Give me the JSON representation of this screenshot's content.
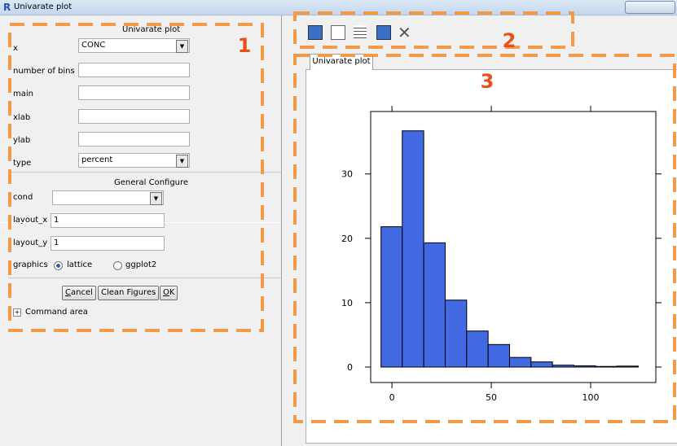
{
  "window": {
    "title": "Univarate plot"
  },
  "form": {
    "heading": "Univarate plot",
    "fields": [
      {
        "label": "x",
        "value": "CONC"
      },
      {
        "label": "number of bins"
      },
      {
        "label": "main"
      },
      {
        "label": "xlab"
      },
      {
        "label": "ylab"
      },
      {
        "label": "type",
        "value": "percent"
      }
    ],
    "general_heading": "General Configure",
    "general_fields": [
      {
        "label": "cond"
      },
      {
        "label": "layout_x",
        "value": "1"
      },
      {
        "label": "layout_y",
        "value": "1"
      }
    ],
    "graphics": {
      "label": "graphics",
      "options": [
        "lattice",
        "ggplot2"
      ]
    },
    "buttons": [
      "Cancel",
      "Clean Figures",
      "OK"
    ],
    "command_area": "Command area"
  },
  "annotations": [
    "1",
    "2",
    "3"
  ],
  "plot_tab": "Univarate plot",
  "chart_data": {
    "type": "histogram",
    "bins": [
      -5.5,
      5.2,
      16,
      26.8,
      37.6,
      48.4,
      59.2,
      70,
      80.8,
      91.6,
      102.4,
      113.2,
      124
    ],
    "values": [
      21.8,
      36.7,
      19.3,
      10.4,
      5.6,
      3.5,
      1.5,
      0.8,
      0.3,
      0.2,
      0.1,
      0.15
    ],
    "color": "#4169e1",
    "xlim": [
      -10.7,
      132.8
    ],
    "xticks": [
      0,
      50,
      100
    ],
    "ylim": [
      -2.4,
      39.7
    ],
    "yticks": [
      0,
      10,
      20,
      30
    ]
  }
}
